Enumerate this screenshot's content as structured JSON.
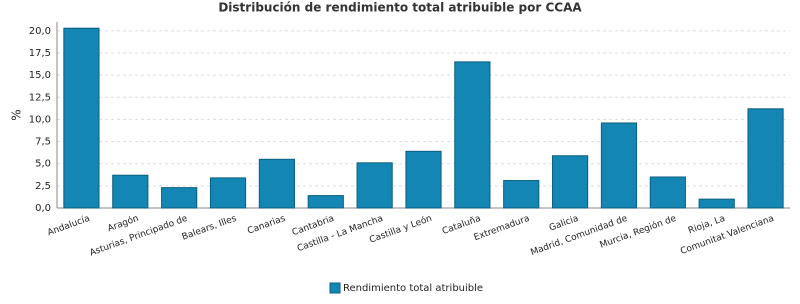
{
  "chart_data": {
    "type": "bar",
    "title": "Distribución de rendimiento total atribuible por CCAA",
    "y_label": "%",
    "categories": [
      "Andalucía",
      "Aragón",
      "Asturias, Principado de",
      "Balears, Illes",
      "Canarias",
      "Cantabria",
      "Castilla - La Mancha",
      "Castilla y León",
      "Cataluña",
      "Extremadura",
      "Galicia",
      "Madrid, Comunidad de",
      "Murcia, Región de",
      "Rioja, La",
      "Comunitat Valenciana"
    ],
    "series": [
      {
        "name": "Rendimiento total atribuible",
        "color": "#1386b3",
        "values": [
          20.3,
          3.7,
          2.3,
          3.4,
          5.5,
          1.4,
          5.1,
          6.4,
          16.5,
          3.1,
          5.9,
          9.6,
          3.5,
          1.0,
          11.2
        ]
      }
    ],
    "ylim": [
      0,
      21
    ],
    "yticks": [
      {
        "value": 0,
        "label": "0,0"
      },
      {
        "value": 2.5,
        "label": "2,5"
      },
      {
        "value": 5,
        "label": "5,0"
      },
      {
        "value": 7.5,
        "label": "7,5"
      },
      {
        "value": 10,
        "label": "10,0"
      },
      {
        "value": 12.5,
        "label": "12,5"
      },
      {
        "value": 15,
        "label": "15,0"
      },
      {
        "value": 17.5,
        "label": "17,5"
      },
      {
        "value": 20,
        "label": "20,0"
      }
    ],
    "grid": true
  }
}
